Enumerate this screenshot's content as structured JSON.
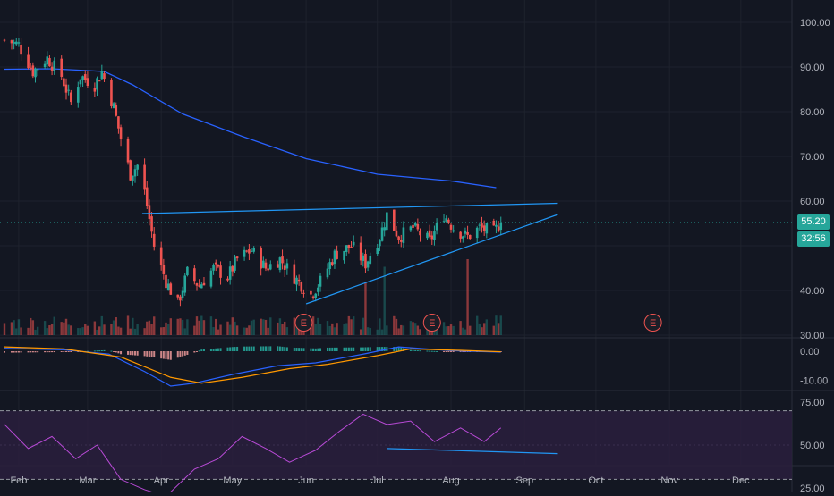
{
  "chart_data": [
    {
      "type": "candlestick",
      "panel": "price",
      "y_axis": {
        "ticks": [
          "100.00",
          "90.00",
          "80.00",
          "70.00",
          "60.00",
          "40.00",
          "30.00"
        ],
        "range": [
          29,
          102
        ]
      },
      "x_axis": {
        "ticks": [
          "Feb",
          "Mar",
          "Apr",
          "May",
          "Jun",
          "Jul",
          "Aug",
          "Sep",
          "Oct",
          "Nov",
          "Dec"
        ]
      },
      "ohlc_anchors": [
        {
          "d": "2024-01-26",
          "c": 96
        },
        {
          "d": "2024-02-01",
          "c": 95
        },
        {
          "d": "2024-02-07",
          "c": 89
        },
        {
          "d": "2024-02-13",
          "c": 92
        },
        {
          "d": "2024-02-19",
          "c": 88
        },
        {
          "d": "2024-02-23",
          "c": 82
        },
        {
          "d": "2024-02-27",
          "c": 88
        },
        {
          "d": "2024-03-04",
          "c": 86
        },
        {
          "d": "2024-03-07",
          "c": 89
        },
        {
          "d": "2024-03-12",
          "c": 81
        },
        {
          "d": "2024-03-15",
          "c": 74
        },
        {
          "d": "2024-03-19",
          "c": 66
        },
        {
          "d": "2024-03-22",
          "c": 68
        },
        {
          "d": "2024-03-25",
          "c": 62
        },
        {
          "d": "2024-03-29",
          "c": 50
        },
        {
          "d": "2024-04-03",
          "c": 42
        },
        {
          "d": "2024-04-08",
          "c": 37
        },
        {
          "d": "2024-04-12",
          "c": 44
        },
        {
          "d": "2024-04-17",
          "c": 41
        },
        {
          "d": "2024-04-23",
          "c": 45
        },
        {
          "d": "2024-04-29",
          "c": 43
        },
        {
          "d": "2024-05-03",
          "c": 47
        },
        {
          "d": "2024-05-09",
          "c": 49
        },
        {
          "d": "2024-05-15",
          "c": 45
        },
        {
          "d": "2024-05-21",
          "c": 47
        },
        {
          "d": "2024-05-27",
          "c": 43
        },
        {
          "d": "2024-06-03",
          "c": 39
        },
        {
          "d": "2024-06-07",
          "c": 42
        },
        {
          "d": "2024-06-13",
          "c": 48
        },
        {
          "d": "2024-06-20",
          "c": 50
        },
        {
          "d": "2024-06-26",
          "c": 46
        },
        {
          "d": "2024-07-02",
          "c": 52
        },
        {
          "d": "2024-07-05",
          "c": 57
        },
        {
          "d": "2024-07-10",
          "c": 52
        },
        {
          "d": "2024-07-16",
          "c": 54
        },
        {
          "d": "2024-07-23",
          "c": 51
        },
        {
          "d": "2024-07-29",
          "c": 57
        },
        {
          "d": "2024-08-02",
          "c": 54
        },
        {
          "d": "2024-08-08",
          "c": 52
        },
        {
          "d": "2024-08-13",
          "c": 54
        },
        {
          "d": "2024-08-19",
          "c": 53
        },
        {
          "d": "2024-08-22",
          "c": 55.2
        }
      ],
      "moving_average": [
        {
          "d": "2024-01-26",
          "v": 89.5
        },
        {
          "d": "2024-02-15",
          "v": 89.6
        },
        {
          "d": "2024-03-08",
          "v": 89
        },
        {
          "d": "2024-03-20",
          "v": 86
        },
        {
          "d": "2024-04-10",
          "v": 79.5
        },
        {
          "d": "2024-05-05",
          "v": 74.5
        },
        {
          "d": "2024-06-01",
          "v": 69.5
        },
        {
          "d": "2024-07-01",
          "v": 66
        },
        {
          "d": "2024-08-01",
          "v": 64.5
        },
        {
          "d": "2024-08-20",
          "v": 63
        }
      ],
      "trendlines": [
        {
          "name": "upper",
          "from": {
            "d": "2024-03-24",
            "v": 57.2
          },
          "to": {
            "d": "2024-09-15",
            "v": 59.5
          }
        },
        {
          "name": "lower",
          "from": {
            "d": "2024-06-01",
            "v": 37.0
          },
          "to": {
            "d": "2024-09-15",
            "v": 57.0
          }
        }
      ],
      "current_price": {
        "value": 55.2,
        "label": "55.20",
        "countdown": "32:56"
      },
      "earnings_markers": [
        {
          "d": "2024-05-31",
          "label": "E"
        },
        {
          "d": "2024-07-24",
          "label": "E"
        },
        {
          "d": "2024-10-25",
          "label": "E"
        }
      ],
      "volume_spikes": [
        {
          "d": "2024-07-04",
          "rel": 0.9
        },
        {
          "d": "2024-08-08",
          "rel": 1.0
        },
        {
          "d": "2024-06-26",
          "rel": 0.7
        }
      ]
    },
    {
      "type": "macd",
      "panel": "macd",
      "y_axis": {
        "ticks": [
          "0.00",
          "-10.00"
        ]
      },
      "macd_line": [
        {
          "d": "2024-01-26",
          "v": 1
        },
        {
          "d": "2024-02-20",
          "v": 0.5
        },
        {
          "d": "2024-03-10",
          "v": -1
        },
        {
          "d": "2024-03-25",
          "v": -7
        },
        {
          "d": "2024-04-05",
          "v": -12
        },
        {
          "d": "2024-04-15",
          "v": -11
        },
        {
          "d": "2024-05-01",
          "v": -8
        },
        {
          "d": "2024-05-20",
          "v": -5
        },
        {
          "d": "2024-06-05",
          "v": -4
        },
        {
          "d": "2024-06-25",
          "v": -1
        },
        {
          "d": "2024-07-10",
          "v": 1.5
        },
        {
          "d": "2024-08-01",
          "v": 0.2
        },
        {
          "d": "2024-08-22",
          "v": -0.3
        }
      ],
      "signal_line": [
        {
          "d": "2024-01-26",
          "v": 1.5
        },
        {
          "d": "2024-02-20",
          "v": 0.8
        },
        {
          "d": "2024-03-15",
          "v": -2
        },
        {
          "d": "2024-04-05",
          "v": -9
        },
        {
          "d": "2024-04-18",
          "v": -11
        },
        {
          "d": "2024-05-05",
          "v": -9
        },
        {
          "d": "2024-05-25",
          "v": -6
        },
        {
          "d": "2024-06-10",
          "v": -4.5
        },
        {
          "d": "2024-07-01",
          "v": -1.5
        },
        {
          "d": "2024-07-15",
          "v": 0.8
        },
        {
          "d": "2024-08-05",
          "v": 0.3
        },
        {
          "d": "2024-08-22",
          "v": -0.2
        }
      ]
    },
    {
      "type": "rsi",
      "panel": "rsi",
      "y_axis": {
        "ticks": [
          "75.00",
          "50.00",
          "25.00"
        ]
      },
      "bands": [
        70,
        30
      ],
      "rsi_line": [
        {
          "d": "2024-01-26",
          "v": 62
        },
        {
          "d": "2024-02-05",
          "v": 48
        },
        {
          "d": "2024-02-15",
          "v": 55
        },
        {
          "d": "2024-02-25",
          "v": 42
        },
        {
          "d": "2024-03-05",
          "v": 50
        },
        {
          "d": "2024-03-15",
          "v": 30
        },
        {
          "d": "2024-03-25",
          "v": 24
        },
        {
          "d": "2024-04-03",
          "v": 20
        },
        {
          "d": "2024-04-15",
          "v": 36
        },
        {
          "d": "2024-04-25",
          "v": 42
        },
        {
          "d": "2024-05-05",
          "v": 55
        },
        {
          "d": "2024-05-15",
          "v": 48
        },
        {
          "d": "2024-05-25",
          "v": 40
        },
        {
          "d": "2024-06-05",
          "v": 47
        },
        {
          "d": "2024-06-15",
          "v": 58
        },
        {
          "d": "2024-06-25",
          "v": 68
        },
        {
          "d": "2024-07-05",
          "v": 62
        },
        {
          "d": "2024-07-15",
          "v": 64
        },
        {
          "d": "2024-07-25",
          "v": 52
        },
        {
          "d": "2024-08-05",
          "v": 60
        },
        {
          "d": "2024-08-15",
          "v": 52
        },
        {
          "d": "2024-08-22",
          "v": 60
        }
      ],
      "trendline": {
        "from": {
          "d": "2024-07-05",
          "v": 48
        },
        "to": {
          "d": "2024-09-15",
          "v": 45
        }
      }
    }
  ],
  "colors": {
    "background": "#131722",
    "grid": "#1e222d",
    "up": "#26a69a",
    "down": "#ef5350",
    "ma": "#2962ff",
    "trendline": "#2196f3",
    "macd": "#2962ff",
    "signal": "#ff9800",
    "rsi": "#b84ad6",
    "rsi_band": "#2a1e3d",
    "axis_text": "#b2b5be"
  }
}
